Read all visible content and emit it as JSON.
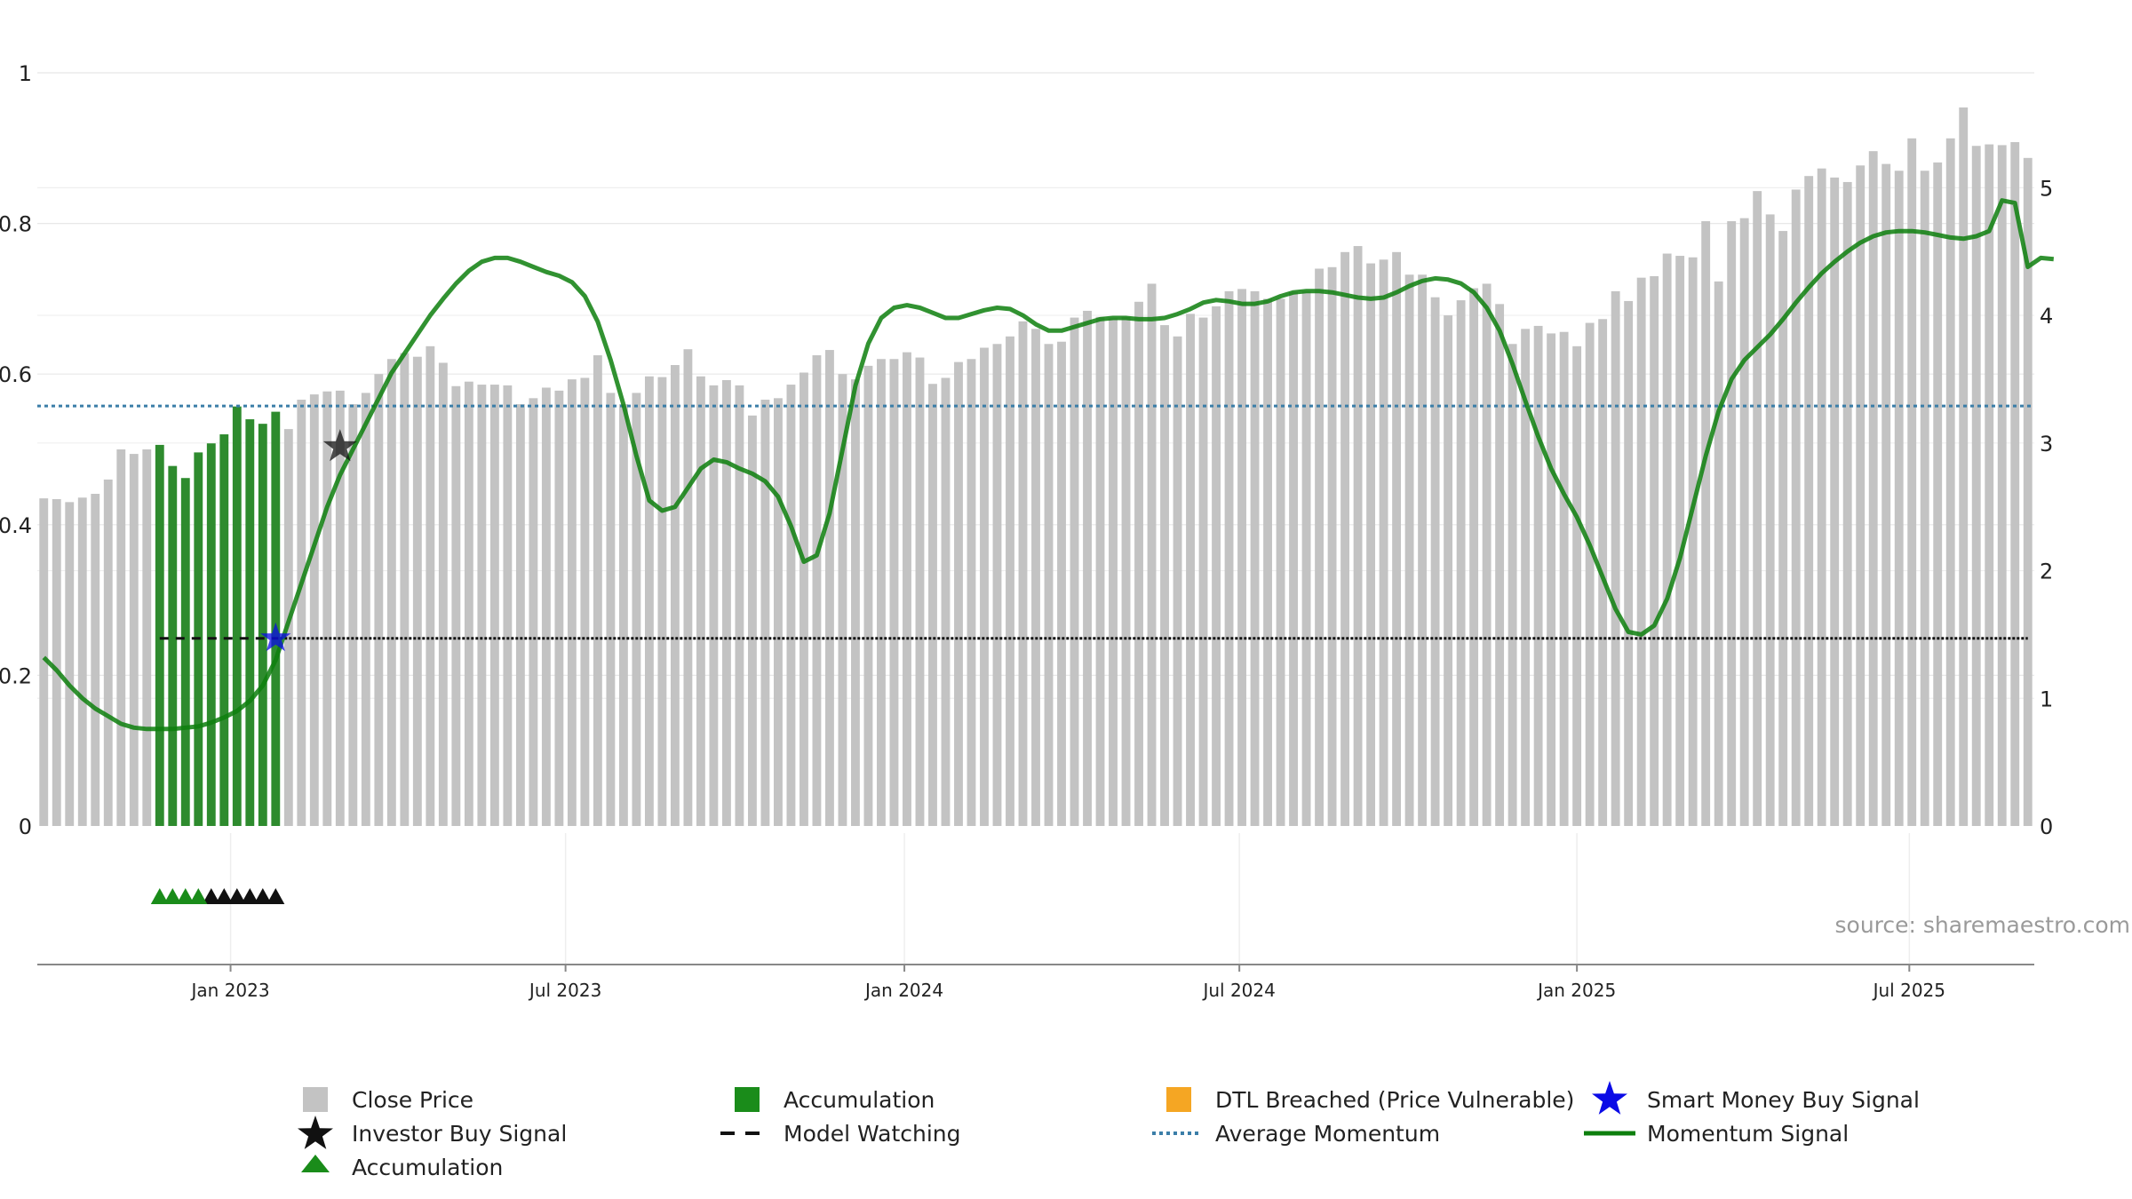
{
  "chart_data": {
    "type": "bar",
    "source": "source: sharemaestro.com",
    "left_axis": {
      "ticks": [
        0,
        0.2,
        0.4,
        0.6,
        0.8,
        1
      ],
      "labels": [
        "0",
        "0.2",
        "0.4",
        "0.6",
        "0.8",
        "1"
      ],
      "ylim": [
        0,
        1
      ]
    },
    "right_axis": {
      "ticks": [
        0,
        1,
        2,
        3,
        4,
        5
      ],
      "labels": [
        "0",
        "1",
        "2",
        "3",
        "4",
        "5"
      ],
      "ylim": [
        0,
        5.9
      ]
    },
    "x_ticks": [
      {
        "label": "Jan 2023",
        "week": 14.5
      },
      {
        "label": "Jul 2023",
        "week": 40.5
      },
      {
        "label": "Jan 2024",
        "week": 66.8
      },
      {
        "label": "Jul 2024",
        "week": 92.8
      },
      {
        "label": "Jan 2025",
        "week": 119.0
      },
      {
        "label": "Jul 2025",
        "week": 144.8
      }
    ],
    "close_price": [
      0.435,
      0.434,
      0.43,
      0.436,
      0.441,
      0.46,
      0.5,
      0.494,
      0.5,
      0.506,
      0.478,
      0.462,
      0.496,
      0.508,
      0.52,
      0.557,
      0.54,
      0.534,
      0.55,
      0.527,
      0.566,
      0.573,
      0.577,
      0.578,
      0.56,
      0.575,
      0.6,
      0.62,
      0.628,
      0.623,
      0.637,
      0.615,
      0.584,
      0.59,
      0.586,
      0.586,
      0.585,
      0.56,
      0.568,
      0.582,
      0.578,
      0.593,
      0.595,
      0.625,
      0.575,
      0.56,
      0.575,
      0.597,
      0.596,
      0.612,
      0.633,
      0.597,
      0.585,
      0.592,
      0.585,
      0.545,
      0.566,
      0.568,
      0.586,
      0.602,
      0.625,
      0.632,
      0.6,
      0.593,
      0.611,
      0.62,
      0.62,
      0.629,
      0.622,
      0.587,
      0.595,
      0.616,
      0.62,
      0.635,
      0.64,
      0.65,
      0.67,
      0.66,
      0.64,
      0.643,
      0.675,
      0.684,
      0.676,
      0.674,
      0.676,
      0.696,
      0.72,
      0.665,
      0.65,
      0.68,
      0.675,
      0.69,
      0.71,
      0.713,
      0.71,
      0.7,
      0.7,
      0.709,
      0.71,
      0.74,
      0.742,
      0.762,
      0.77,
      0.747,
      0.752,
      0.762,
      0.732,
      0.732,
      0.702,
      0.678,
      0.698,
      0.714,
      0.72,
      0.693,
      0.64,
      0.66,
      0.664,
      0.654,
      0.656,
      0.637,
      0.668,
      0.673,
      0.71,
      0.697,
      0.728,
      0.73,
      0.76,
      0.757,
      0.755,
      0.803,
      0.723,
      0.803,
      0.807,
      0.843,
      0.812,
      0.79,
      0.845,
      0.863,
      0.873,
      0.861,
      0.855,
      0.877,
      0.896,
      0.879,
      0.87,
      0.913,
      0.87,
      0.881,
      0.913,
      0.954,
      0.903,
      0.905,
      0.904,
      0.908,
      0.887
    ],
    "accumulation_bars": [
      9,
      10,
      11,
      12,
      13,
      14,
      15,
      16,
      17,
      18
    ],
    "momentum_signal": [
      1.32,
      1.22,
      1.1,
      1.0,
      0.92,
      0.86,
      0.8,
      0.77,
      0.76,
      0.76,
      0.76,
      0.77,
      0.78,
      0.81,
      0.85,
      0.9,
      0.98,
      1.1,
      1.3,
      1.6,
      1.9,
      2.2,
      2.5,
      2.75,
      2.95,
      3.15,
      3.35,
      3.55,
      3.7,
      3.85,
      4.0,
      4.13,
      4.25,
      4.35,
      4.42,
      4.45,
      4.45,
      4.42,
      4.38,
      4.34,
      4.31,
      4.26,
      4.15,
      3.95,
      3.65,
      3.3,
      2.9,
      2.55,
      2.47,
      2.5,
      2.65,
      2.8,
      2.87,
      2.85,
      2.8,
      2.76,
      2.7,
      2.58,
      2.35,
      2.07,
      2.12,
      2.45,
      2.95,
      3.45,
      3.78,
      3.98,
      4.06,
      4.08,
      4.06,
      4.02,
      3.98,
      3.98,
      4.01,
      4.04,
      4.06,
      4.05,
      4.0,
      3.93,
      3.88,
      3.88,
      3.91,
      3.94,
      3.97,
      3.98,
      3.98,
      3.97,
      3.97,
      3.98,
      4.01,
      4.05,
      4.1,
      4.12,
      4.11,
      4.09,
      4.09,
      4.11,
      4.15,
      4.18,
      4.19,
      4.19,
      4.18,
      4.16,
      4.14,
      4.13,
      4.14,
      4.18,
      4.23,
      4.27,
      4.29,
      4.28,
      4.25,
      4.18,
      4.06,
      3.88,
      3.62,
      3.33,
      3.05,
      2.8,
      2.6,
      2.42,
      2.2,
      1.95,
      1.7,
      1.52,
      1.5,
      1.57,
      1.78,
      2.1,
      2.5,
      2.9,
      3.25,
      3.5,
      3.65,
      3.75,
      3.85,
      3.97,
      4.1,
      4.22,
      4.33,
      4.42,
      4.5,
      4.57,
      4.62,
      4.65,
      4.66,
      4.66,
      4.65,
      4.63,
      4.61,
      4.6,
      4.62,
      4.66,
      4.9,
      4.88,
      4.38,
      4.45,
      4.44
    ],
    "average_momentum": 3.29,
    "model_watching": {
      "value": 1.47,
      "dashed_start": 9,
      "dashed_end": 18,
      "solid_start": 18,
      "solid_end": 154
    },
    "investor_buy_signal": {
      "week": 23,
      "value": 2.97
    },
    "smart_money_buy_signal": {
      "week": 18,
      "value": 1.47
    },
    "accumulation_markers": {
      "green": [
        9,
        10,
        11,
        12
      ],
      "black": [
        13,
        14,
        15,
        16,
        17,
        18
      ]
    },
    "legend": [
      {
        "label": "Close Price",
        "symbol": "gray-square"
      },
      {
        "label": "Accumulation",
        "symbol": "green-square"
      },
      {
        "label": "DTL Breached (Price Vulnerable)",
        "symbol": "orange-square"
      },
      {
        "label": "Smart Money Buy Signal",
        "symbol": "blue-star"
      },
      {
        "label": "Investor Buy Signal",
        "symbol": "black-star"
      },
      {
        "label": "Model Watching",
        "symbol": "black-dash"
      },
      {
        "label": "Average Momentum",
        "symbol": "blue-dotted"
      },
      {
        "label": "Momentum Signal",
        "symbol": "green-line"
      },
      {
        "label": "Accumulation",
        "symbol": "green-triangle"
      }
    ],
    "colors": {
      "close": "#c3c3c3",
      "accum": "#2e8b2e",
      "dtl": "#f5a623",
      "smart": "#0b0be6",
      "investor": "#111111",
      "watch": "#111111",
      "avg": "#3b7ea8",
      "momentum": "#0d7f0d",
      "grid": "#e8e8e8",
      "axis": "#888888",
      "source": "#9a9a9a"
    }
  }
}
